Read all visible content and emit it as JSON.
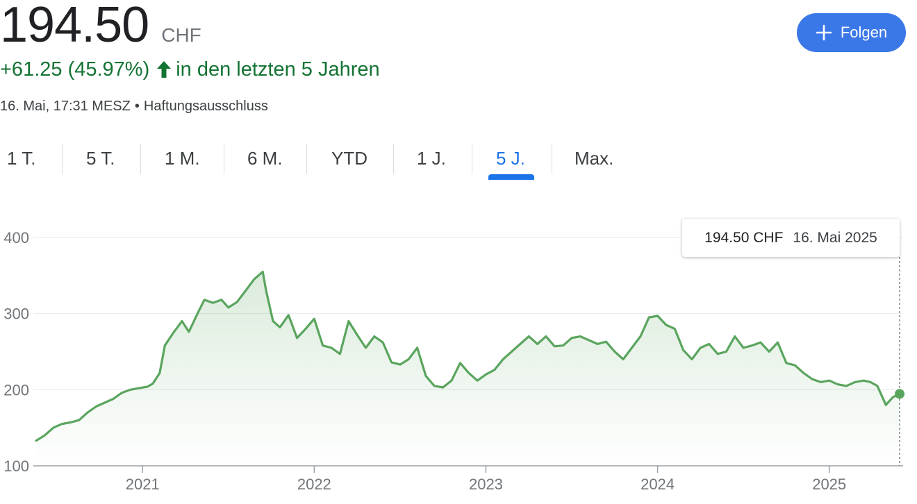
{
  "quote": {
    "price": "194.50",
    "currency": "CHF",
    "change": "+61.25 (45.97%)",
    "change_period": "in den letzten 5 Jahren",
    "timestamp": "16. Mai, 17:31 MESZ",
    "disclaimer": "Haftungsausschluss"
  },
  "follow_button": {
    "label": "Folgen",
    "icon": "plus-icon"
  },
  "tabs": [
    {
      "label": "1 T.",
      "active": false
    },
    {
      "label": "5 T.",
      "active": false
    },
    {
      "label": "1 M.",
      "active": false
    },
    {
      "label": "6 M.",
      "active": false
    },
    {
      "label": "YTD",
      "active": false
    },
    {
      "label": "1 J.",
      "active": false
    },
    {
      "label": "5 J.",
      "active": true
    },
    {
      "label": "Max.",
      "active": false
    }
  ],
  "tooltip": {
    "value": "194.50 CHF",
    "date": "16. Mai 2025"
  },
  "colors": {
    "line": "#5aa55e",
    "positive": "#137333",
    "accent": "#1a73e8",
    "button": "#3b78e7"
  },
  "chart_data": {
    "type": "area",
    "title": "",
    "xlabel": "",
    "ylabel": "",
    "ylim": [
      100,
      400
    ],
    "yticks": [
      100,
      200,
      300,
      400
    ],
    "xticks": [
      {
        "x": 2021.0,
        "label": "2021"
      },
      {
        "x": 2022.0,
        "label": "2022"
      },
      {
        "x": 2023.0,
        "label": "2023"
      },
      {
        "x": 2024.0,
        "label": "2024"
      },
      {
        "x": 2025.0,
        "label": "2025"
      }
    ],
    "xlim": [
      2020.38,
      2025.41
    ],
    "grid": true,
    "series": [
      {
        "x": [
          2020.38,
          2020.43,
          2020.48,
          2020.53,
          2020.58,
          2020.63,
          2020.68,
          2020.73,
          2020.78,
          2020.83,
          2020.88,
          2020.93,
          2020.98,
          2021.03,
          2021.06,
          2021.1,
          2021.13,
          2021.18,
          2021.23,
          2021.27,
          2021.32,
          2021.36,
          2021.41,
          2021.46,
          2021.5,
          2021.55,
          2021.6,
          2021.65,
          2021.7,
          2021.72,
          2021.76,
          2021.8,
          2021.85,
          2021.9,
          2021.95,
          2022.0,
          2022.05,
          2022.1,
          2022.15,
          2022.2,
          2022.25,
          2022.3,
          2022.35,
          2022.4,
          2022.45,
          2022.5,
          2022.55,
          2022.6,
          2022.65,
          2022.7,
          2022.75,
          2022.8,
          2022.85,
          2022.9,
          2022.95,
          2023.0,
          2023.05,
          2023.1,
          2023.15,
          2023.2,
          2023.25,
          2023.3,
          2023.35,
          2023.4,
          2023.45,
          2023.5,
          2023.55,
          2023.6,
          2023.65,
          2023.7,
          2023.75,
          2023.8,
          2023.85,
          2023.9,
          2023.95,
          2024.0,
          2024.05,
          2024.1,
          2024.15,
          2024.2,
          2024.25,
          2024.3,
          2024.35,
          2024.4,
          2024.45,
          2024.5,
          2024.55,
          2024.6,
          2024.65,
          2024.7,
          2024.75,
          2024.8,
          2024.85,
          2024.9,
          2024.95,
          2025.0,
          2025.05,
          2025.1,
          2025.15,
          2025.2,
          2025.24,
          2025.28,
          2025.33,
          2025.37,
          2025.41
        ],
        "y": [
          133,
          140,
          150,
          155,
          157,
          160,
          170,
          178,
          183,
          188,
          196,
          200,
          202,
          204,
          208,
          222,
          258,
          275,
          290,
          276,
          300,
          318,
          314,
          318,
          308,
          315,
          330,
          345,
          355,
          330,
          290,
          282,
          298,
          268,
          280,
          293,
          258,
          255,
          247,
          290,
          272,
          255,
          270,
          262,
          236,
          233,
          240,
          255,
          218,
          205,
          203,
          212,
          235,
          222,
          212,
          220,
          226,
          240,
          250,
          260,
          270,
          260,
          270,
          257,
          258,
          268,
          270,
          265,
          260,
          263,
          250,
          240,
          255,
          270,
          295,
          297,
          285,
          280,
          252,
          240,
          255,
          260,
          247,
          250,
          270,
          255,
          258,
          262,
          250,
          262,
          235,
          232,
          222,
          214,
          210,
          212,
          207,
          205,
          210,
          212,
          210,
          205,
          180,
          190,
          194.5
        ]
      }
    ]
  }
}
